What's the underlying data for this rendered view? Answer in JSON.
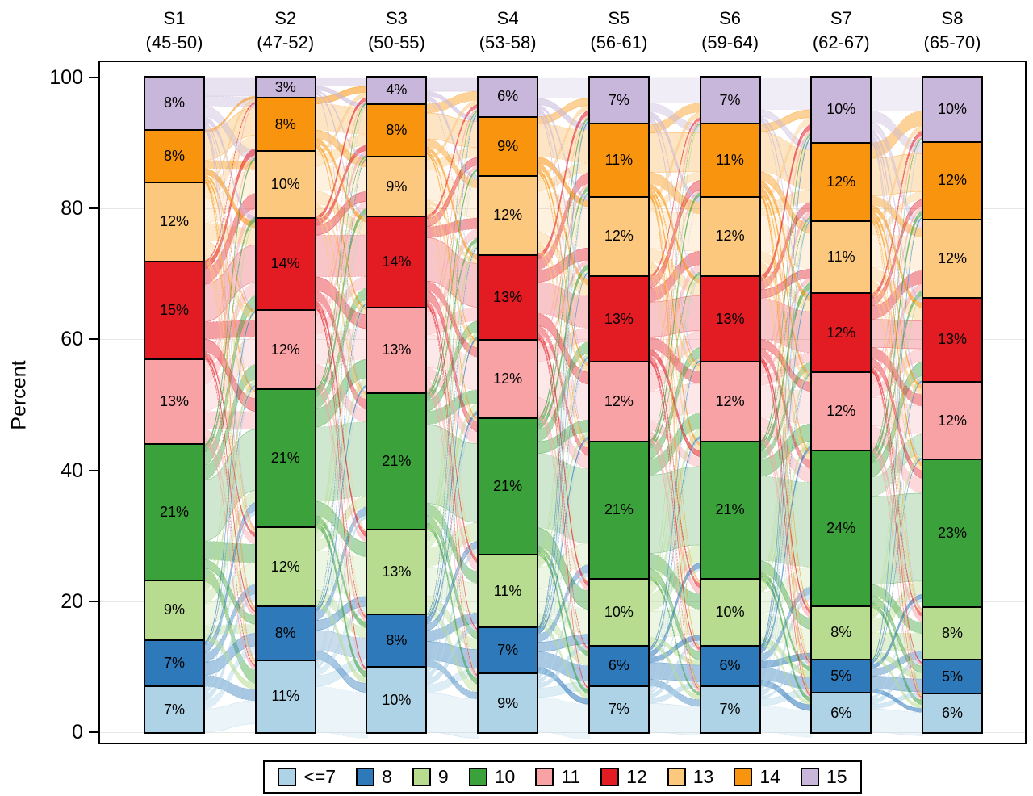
{
  "ylabel": "Percent",
  "chart_data": {
    "type": "alluvial-stacked-bar",
    "title": "",
    "xlabel": "",
    "ylabel": "Percent",
    "ylim": [
      0,
      100
    ],
    "yticks": [
      0,
      20,
      40,
      60,
      80,
      100
    ],
    "grid": true,
    "legend_position": "bottom",
    "value_suffix": "%",
    "categories": [
      {
        "label": "<=7",
        "color": "#aed3e7"
      },
      {
        "label": "8",
        "color": "#2e79b9"
      },
      {
        "label": "9",
        "color": "#b7dc8f"
      },
      {
        "label": "10",
        "color": "#3ba13a"
      },
      {
        "label": "11",
        "color": "#f9a2a6"
      },
      {
        "label": "12",
        "color": "#e31b23"
      },
      {
        "label": "13",
        "color": "#fbc87e"
      },
      {
        "label": "14",
        "color": "#f8940d"
      },
      {
        "label": "15",
        "color": "#c8b7da"
      }
    ],
    "columns": [
      {
        "label": "S1",
        "sublabel": "(45-50)",
        "values": [
          7,
          7,
          9,
          21,
          13,
          15,
          12,
          8,
          8
        ]
      },
      {
        "label": "S2",
        "sublabel": "(47-52)",
        "values": [
          11,
          8,
          12,
          21,
          12,
          14,
          10,
          8,
          3
        ]
      },
      {
        "label": "S3",
        "sublabel": "(50-55)",
        "values": [
          10,
          8,
          13,
          21,
          13,
          14,
          9,
          8,
          4
        ]
      },
      {
        "label": "S4",
        "sublabel": "(53-58)",
        "values": [
          9,
          7,
          11,
          21,
          12,
          13,
          12,
          9,
          6
        ]
      },
      {
        "label": "S5",
        "sublabel": "(56-61)",
        "values": [
          7,
          6,
          10,
          21,
          12,
          13,
          12,
          11,
          7
        ]
      },
      {
        "label": "S6",
        "sublabel": "(59-64)",
        "values": [
          7,
          6,
          10,
          21,
          12,
          13,
          12,
          11,
          7
        ]
      },
      {
        "label": "S7",
        "sublabel": "(62-67)",
        "values": [
          6,
          5,
          8,
          24,
          12,
          12,
          11,
          12,
          10
        ]
      },
      {
        "label": "S8",
        "sublabel": "(65-70)",
        "values": [
          6,
          5,
          8,
          23,
          12,
          13,
          12,
          12,
          10
        ]
      }
    ]
  }
}
